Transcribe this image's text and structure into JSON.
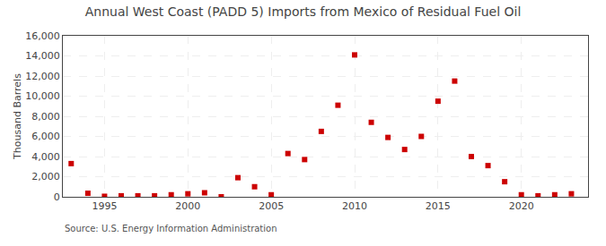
{
  "chart_data": {
    "type": "scatter",
    "title": "Annual West Coast (PADD 5) Imports from Mexico of Residual Fuel Oil",
    "y_label": "Thousand Barrels",
    "annotations": [
      "Source: U.S. Energy Information Administration"
    ],
    "x": [
      1993,
      1994,
      1995,
      1996,
      1997,
      1998,
      1999,
      2000,
      2001,
      2002,
      2003,
      2004,
      2005,
      2006,
      2007,
      2008,
      2009,
      2010,
      2011,
      2012,
      2013,
      2014,
      2015,
      2016,
      2017,
      2018,
      2019,
      2020,
      2021,
      2022,
      2023
    ],
    "values": [
      3300,
      350,
      50,
      100,
      100,
      100,
      200,
      300,
      400,
      0,
      1900,
      1000,
      200,
      4300,
      3700,
      6500,
      9100,
      14100,
      7400,
      5900,
      4700,
      6000,
      9500,
      11500,
      4000,
      3100,
      1500,
      200,
      100,
      200,
      300
    ],
    "color": "#cc0000",
    "marker": "square",
    "grid": true,
    "xlim": [
      1992.5,
      2024
    ],
    "xticks": [
      1995,
      2000,
      2005,
      2010,
      2015,
      2020
    ],
    "ylim": [
      0,
      16000
    ],
    "yticks": [
      0,
      {
        "value": 2000,
        "label": "2,000"
      },
      {
        "value": 4000,
        "label": "4,000"
      },
      {
        "value": 6000,
        "label": "6,000"
      },
      {
        "value": 8000,
        "label": "8,000"
      },
      {
        "value": 10000,
        "label": "10,000"
      },
      {
        "value": 12000,
        "label": "12,000"
      },
      {
        "value": 14000,
        "label": "14,000"
      },
      {
        "value": 16000,
        "label": "16,000"
      }
    ]
  }
}
